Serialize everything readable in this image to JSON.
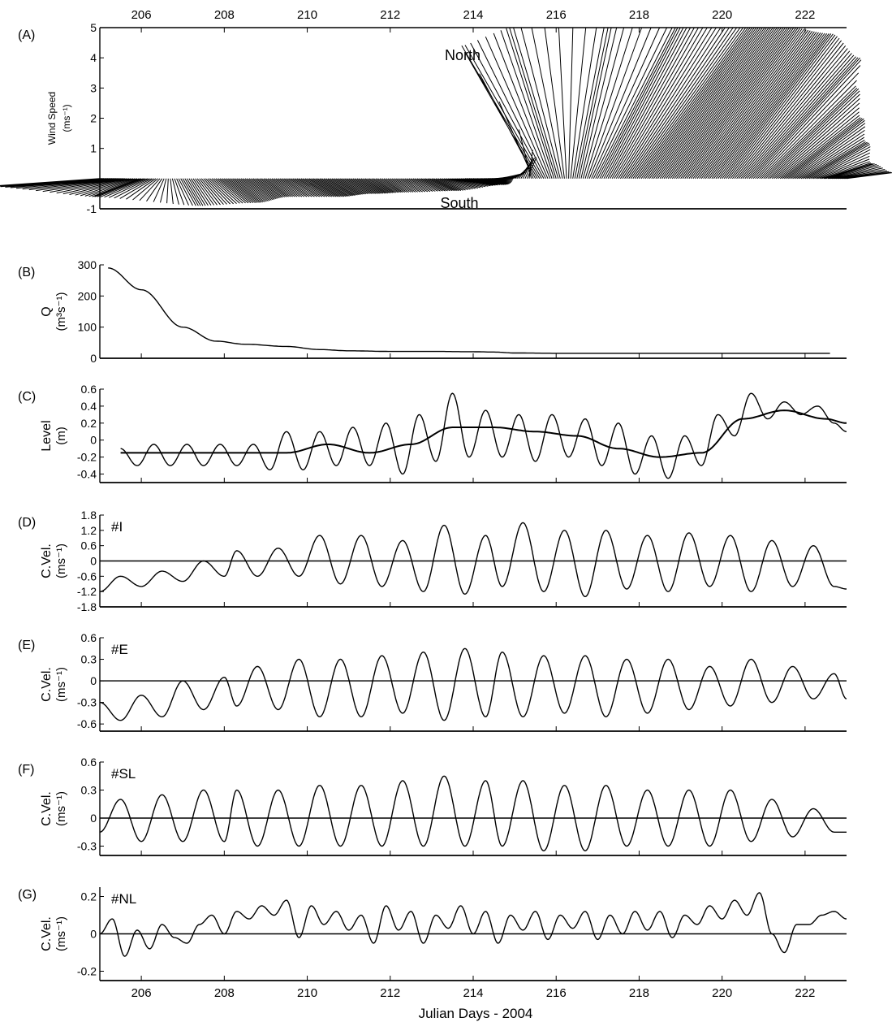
{
  "xlabel": "Julian Days - 2004",
  "x_ticks": [
    206,
    208,
    210,
    212,
    214,
    216,
    218,
    220,
    222
  ],
  "xlim": [
    205,
    223
  ],
  "chart_data": [
    {
      "id": "A",
      "type": "line",
      "panel_label": "(A)",
      "ylabel": "Wind Speed",
      "yunit": "(ms⁻¹)",
      "ylim": [
        -1,
        5
      ],
      "yticks": [
        -1,
        1,
        2,
        3,
        4,
        5
      ],
      "annotations": [
        "North",
        "South"
      ],
      "series": [
        {
          "style": "stick-vectors",
          "x": [
            205,
            206,
            207,
            208,
            209,
            210,
            211,
            212,
            213,
            214,
            214.8,
            215.3,
            215.6,
            216,
            216.5,
            217,
            218,
            219,
            220,
            220.7,
            221,
            221.5,
            222,
            222.5,
            223
          ],
          "u": [
            -3.5,
            -1.5,
            0.5,
            1.0,
            0.8,
            1.0,
            0.8,
            0.6,
            0.8,
            1.0,
            0.5,
            0.3,
            -2.5,
            -1.5,
            1.0,
            2.5,
            3.5,
            3.5,
            3.5,
            3.5,
            3.0,
            2.5,
            2.0,
            1.5,
            1.5
          ],
          "v": [
            -0.25,
            -0.6,
            -0.9,
            -0.8,
            -0.6,
            -0.6,
            -0.5,
            -0.45,
            -0.4,
            -0.2,
            0.15,
            0.7,
            4.4,
            5.0,
            5.0,
            5.0,
            5.0,
            5.0,
            4.8,
            4.0,
            3.0,
            2.0,
            1.2,
            0.5,
            0.2
          ]
        }
      ]
    },
    {
      "id": "B",
      "type": "line",
      "panel_label": "(B)",
      "ylabel": "Q",
      "yunit": "(m³s⁻¹)",
      "ylim": [
        0,
        300
      ],
      "yticks": [
        0,
        100,
        200,
        300
      ],
      "series": [
        {
          "x": [
            205.2,
            206,
            207,
            207.8,
            208.5,
            209.5,
            210.3,
            211,
            212,
            213,
            214,
            214.5,
            215,
            216,
            217,
            218,
            219,
            220,
            221,
            222,
            222.6
          ],
          "y": [
            290,
            220,
            100,
            55,
            45,
            38,
            28,
            24,
            22,
            22,
            21,
            20,
            17,
            16,
            16,
            16,
            16,
            16,
            16,
            16,
            16
          ]
        }
      ]
    },
    {
      "id": "C",
      "type": "line",
      "panel_label": "(C)",
      "ylabel": "Level",
      "yunit": "(m)",
      "ylim": [
        -0.5,
        0.6
      ],
      "yticks": [
        -0.4,
        -0.2,
        0,
        0.2,
        0.4,
        0.6
      ],
      "series": [
        {
          "name": "level",
          "x": [
            205.5,
            205.9,
            206.3,
            206.7,
            207.1,
            207.5,
            207.9,
            208.3,
            208.7,
            209.1,
            209.5,
            209.9,
            210.3,
            210.7,
            211.1,
            211.5,
            211.9,
            212.3,
            212.7,
            213.1,
            213.5,
            213.9,
            214.3,
            214.7,
            215.1,
            215.5,
            215.9,
            216.3,
            216.7,
            217.1,
            217.5,
            217.9,
            218.3,
            218.7,
            219.1,
            219.5,
            219.9,
            220.3,
            220.7,
            221.1,
            221.5,
            221.9,
            222.3,
            222.7,
            223
          ],
          "y": [
            -0.1,
            -0.3,
            -0.05,
            -0.3,
            -0.05,
            -0.3,
            -0.05,
            -0.3,
            -0.05,
            -0.35,
            0.1,
            -0.35,
            0.1,
            -0.3,
            0.15,
            -0.3,
            0.2,
            -0.4,
            0.3,
            -0.25,
            0.55,
            -0.2,
            0.35,
            -0.2,
            0.3,
            -0.25,
            0.3,
            -0.2,
            0.25,
            -0.3,
            0.2,
            -0.4,
            0.05,
            -0.45,
            0.05,
            -0.3,
            0.3,
            0.05,
            0.55,
            0.25,
            0.45,
            0.3,
            0.4,
            0.2,
            0.1
          ]
        },
        {
          "name": "mean",
          "x": [
            205.5,
            206.5,
            207.5,
            208.5,
            209.5,
            210.5,
            211.5,
            212.5,
            213.5,
            214.5,
            215.5,
            216.5,
            217.5,
            218.5,
            219.5,
            220.5,
            221.5,
            222.5,
            223
          ],
          "y": [
            -0.15,
            -0.15,
            -0.15,
            -0.15,
            -0.15,
            -0.05,
            -0.15,
            -0.05,
            0.15,
            0.15,
            0.1,
            0.05,
            -0.1,
            -0.2,
            -0.15,
            0.25,
            0.35,
            0.25,
            0.2
          ]
        }
      ]
    },
    {
      "id": "D",
      "type": "line",
      "panel_label": "(D)",
      "station": "#I",
      "ylabel": "C.Vel.",
      "yunit": "(ms⁻¹)",
      "ylim": [
        -1.8,
        1.8
      ],
      "yticks": [
        -1.8,
        -1.2,
        -0.6,
        0,
        0.6,
        1.2,
        1.8
      ],
      "ytick_labels": [
        "-1.8",
        "-1.2",
        "-0.6",
        "0",
        "0.6",
        "1.2",
        "1.8"
      ],
      "zero_line": true,
      "series": [
        {
          "x": [
            205,
            205.5,
            206,
            206.5,
            207,
            207.5,
            208,
            208.3,
            208.8,
            209.3,
            209.8,
            210.3,
            210.8,
            211.3,
            211.8,
            212.3,
            212.8,
            213.3,
            213.8,
            214.3,
            214.7,
            215.2,
            215.7,
            216.2,
            216.7,
            217.2,
            217.7,
            218.2,
            218.7,
            219.2,
            219.7,
            220.2,
            220.7,
            221.2,
            221.7,
            222.2,
            222.7,
            223
          ],
          "y": [
            -1.2,
            -0.6,
            -1.0,
            -0.4,
            -0.8,
            0.0,
            -0.6,
            0.4,
            -0.6,
            0.5,
            -0.6,
            1.0,
            -0.9,
            1.0,
            -1.0,
            0.8,
            -1.2,
            1.4,
            -1.3,
            1.0,
            -1.0,
            1.5,
            -1.2,
            1.2,
            -1.4,
            1.2,
            -1.1,
            1.0,
            -1.2,
            1.1,
            -1.0,
            1.0,
            -1.2,
            0.8,
            -1.0,
            0.6,
            -1.0,
            -1.1
          ]
        }
      ]
    },
    {
      "id": "E",
      "type": "line",
      "panel_label": "(E)",
      "station": "#E",
      "ylabel": "C.Vel.",
      "yunit": "(ms⁻¹)",
      "ylim": [
        -0.7,
        0.6
      ],
      "yticks": [
        -0.6,
        -0.3,
        0,
        0.3,
        0.6
      ],
      "ytick_labels": [
        "-0.6",
        "-0.3",
        "0",
        "0.3",
        "0.6"
      ],
      "zero_line": true,
      "series": [
        {
          "x": [
            205,
            205.5,
            206,
            206.5,
            207,
            207.5,
            208,
            208.3,
            208.8,
            209.3,
            209.8,
            210.3,
            210.8,
            211.3,
            211.8,
            212.3,
            212.8,
            213.3,
            213.8,
            214.3,
            214.7,
            215.2,
            215.7,
            216.2,
            216.7,
            217.2,
            217.7,
            218.2,
            218.7,
            219.2,
            219.7,
            220.2,
            220.7,
            221.2,
            221.7,
            222.2,
            222.7,
            223
          ],
          "y": [
            -0.3,
            -0.55,
            -0.2,
            -0.5,
            0.0,
            -0.4,
            0.05,
            -0.35,
            0.2,
            -0.4,
            0.3,
            -0.5,
            0.3,
            -0.5,
            0.35,
            -0.45,
            0.4,
            -0.55,
            0.45,
            -0.5,
            0.4,
            -0.5,
            0.35,
            -0.45,
            0.35,
            -0.5,
            0.3,
            -0.45,
            0.3,
            -0.4,
            0.2,
            -0.35,
            0.3,
            -0.3,
            0.2,
            -0.25,
            0.1,
            -0.25
          ]
        }
      ]
    },
    {
      "id": "F",
      "type": "line",
      "panel_label": "(F)",
      "station": "#SL",
      "ylabel": "C.Vel.",
      "yunit": "(ms⁻¹)",
      "ylim": [
        -0.4,
        0.6
      ],
      "yticks": [
        -0.3,
        0,
        0.3,
        0.6
      ],
      "ytick_labels": [
        "-0.3",
        "0",
        "0.3",
        "0.6"
      ],
      "zero_line": true,
      "series": [
        {
          "x": [
            205,
            205.5,
            206,
            206.5,
            207,
            207.5,
            208,
            208.3,
            208.8,
            209.3,
            209.8,
            210.3,
            210.8,
            211.3,
            211.8,
            212.3,
            212.8,
            213.3,
            213.8,
            214.3,
            214.7,
            215.2,
            215.7,
            216.2,
            216.7,
            217.2,
            217.7,
            218.2,
            218.7,
            219.2,
            219.7,
            220.2,
            220.7,
            221.2,
            221.7,
            222.2,
            222.7,
            223
          ],
          "y": [
            -0.15,
            0.2,
            -0.25,
            0.25,
            -0.25,
            0.3,
            -0.25,
            0.3,
            -0.3,
            0.3,
            -0.3,
            0.35,
            -0.3,
            0.35,
            -0.3,
            0.4,
            -0.3,
            0.45,
            -0.3,
            0.4,
            -0.3,
            0.4,
            -0.35,
            0.35,
            -0.35,
            0.35,
            -0.3,
            0.3,
            -0.3,
            0.3,
            -0.3,
            0.3,
            -0.25,
            0.2,
            -0.2,
            0.1,
            -0.15,
            -0.15
          ]
        }
      ]
    },
    {
      "id": "G",
      "type": "line",
      "panel_label": "(G)",
      "station": "#NL",
      "ylabel": "C.Vel.",
      "yunit": "(ms⁻¹)",
      "ylim": [
        -0.25,
        0.25
      ],
      "yticks": [
        -0.2,
        0,
        0.2
      ],
      "ytick_labels": [
        "-0.2",
        "0",
        "0.2"
      ],
      "zero_line": true,
      "series": [
        {
          "x": [
            205,
            205.3,
            205.6,
            205.9,
            206.2,
            206.5,
            206.8,
            207.1,
            207.4,
            207.7,
            208,
            208.3,
            208.6,
            208.9,
            209.2,
            209.5,
            209.8,
            210.1,
            210.4,
            210.7,
            211,
            211.3,
            211.6,
            211.9,
            212.2,
            212.5,
            212.8,
            213.1,
            213.4,
            213.7,
            214,
            214.3,
            214.6,
            214.9,
            215.2,
            215.5,
            215.8,
            216.1,
            216.4,
            216.7,
            217,
            217.3,
            217.6,
            217.9,
            218.2,
            218.5,
            218.8,
            219.1,
            219.4,
            219.7,
            220,
            220.3,
            220.6,
            220.9,
            221.2,
            221.5,
            221.8,
            222.1,
            222.4,
            222.7,
            223
          ],
          "y": [
            0.0,
            0.08,
            -0.12,
            0.02,
            -0.08,
            0.05,
            -0.02,
            -0.05,
            0.05,
            0.1,
            0.0,
            0.12,
            0.08,
            0.15,
            0.1,
            0.18,
            -0.02,
            0.15,
            0.05,
            0.12,
            0.02,
            0.1,
            -0.05,
            0.15,
            0.02,
            0.12,
            -0.05,
            0.1,
            0.03,
            0.15,
            0.0,
            0.12,
            -0.05,
            0.1,
            0.02,
            0.12,
            -0.03,
            0.1,
            0.03,
            0.12,
            -0.03,
            0.1,
            0.0,
            0.12,
            0.02,
            0.12,
            -0.02,
            0.1,
            0.05,
            0.15,
            0.08,
            0.18,
            0.1,
            0.22,
            0.0,
            -0.1,
            0.05,
            0.05,
            0.1,
            0.12,
            0.08
          ]
        }
      ]
    }
  ]
}
